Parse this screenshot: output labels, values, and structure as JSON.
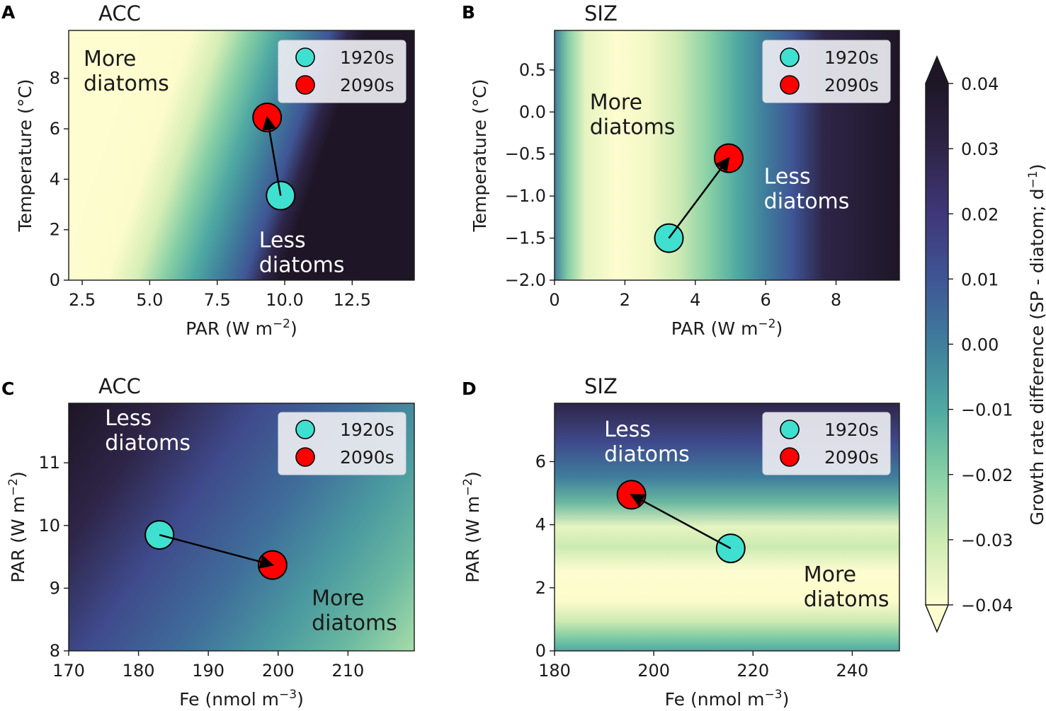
{
  "colorbar": {
    "label_main": "Growth rate difference (SP - diatom; d",
    "label_sup": "−1",
    "label_end": ")",
    "ticks": [
      "0.04",
      "0.03",
      "0.02",
      "0.01",
      "0.00",
      "−0.01",
      "−0.02",
      "−0.03",
      "−0.04"
    ],
    "ticks_values": [
      0.04,
      0.03,
      0.02,
      0.01,
      0.0,
      -0.01,
      -0.02,
      -0.03,
      -0.04
    ],
    "range": [
      -0.04,
      0.04
    ],
    "extend": "both",
    "colors": [
      "#fdfdd0",
      "#cdeab3",
      "#86cfa5",
      "#4fa9a2",
      "#3f7e9c",
      "#3f5595",
      "#3f3778",
      "#2e2548",
      "#1e1626"
    ]
  },
  "legend": {
    "entries": [
      "1920s",
      "2090s"
    ],
    "colors": [
      "#40e0d0",
      "#ff0000"
    ]
  },
  "chart_data": [
    {
      "panel": "A",
      "type": "heatmap",
      "title": "ACC",
      "xlabel_main": "PAR (W m",
      "xlabel_sup": "−2",
      "xlabel_end": ")",
      "ylabel": "Temperature (°C)",
      "xlim": [
        2.0,
        14.8
      ],
      "ylim": [
        0,
        9.9
      ],
      "xticks": [
        2.5,
        5.0,
        7.5,
        10.0,
        12.5
      ],
      "xtick_labels": [
        "2.5",
        "5.0",
        "7.5",
        "10.0",
        "12.5"
      ],
      "yticks": [
        0,
        2,
        4,
        6,
        8
      ],
      "ytick_labels": [
        "0",
        "2",
        "4",
        "6",
        "8"
      ],
      "points": {
        "x1920": 9.85,
        "y1920": 3.35,
        "x2090": 9.35,
        "y2090": 6.45
      },
      "annotations": [
        {
          "lines": [
            "More",
            "diatoms"
          ],
          "x": 2.55,
          "y": 8.5,
          "color": "#1a1a1a"
        },
        {
          "lines": [
            "Less",
            "diatoms"
          ],
          "x": 9.05,
          "y": 1.3,
          "color": "#ffffff"
        }
      ]
    },
    {
      "panel": "B",
      "type": "heatmap",
      "title": "SIZ",
      "xlabel_main": "PAR (W m",
      "xlabel_sup": "−2",
      "xlabel_end": ")",
      "ylabel": "Temperature (°C)",
      "xlim": [
        0,
        9.8
      ],
      "ylim": [
        -2.0,
        0.97
      ],
      "xticks": [
        0,
        2,
        4,
        6,
        8
      ],
      "xtick_labels": [
        "0",
        "2",
        "4",
        "6",
        "8"
      ],
      "yticks": [
        -2.0,
        -1.5,
        -1.0,
        -0.5,
        0.0,
        0.5
      ],
      "ytick_labels": [
        "−2.0",
        "−1.5",
        "−1.0",
        "−0.5",
        "0.0",
        "0.5"
      ],
      "points": {
        "x1920": 3.25,
        "y1920": -1.5,
        "x2090": 4.95,
        "y2090": -0.55
      },
      "annotations": [
        {
          "lines": [
            "More",
            "diatoms"
          ],
          "x": 1.0,
          "y": 0.03,
          "color": "#1a1a1a"
        },
        {
          "lines": [
            "Less",
            "diatoms"
          ],
          "x": 5.95,
          "y": -0.85,
          "color": "#ffffff"
        }
      ]
    },
    {
      "panel": "C",
      "type": "heatmap",
      "title": "ACC",
      "xlabel_main": "Fe (nmol m",
      "xlabel_sup": "−3",
      "xlabel_end": ")",
      "ylabel_main": "PAR (W m",
      "ylabel_sup": "−2",
      "ylabel_end": ")",
      "xlim": [
        170,
        219.5
      ],
      "ylim": [
        8.0,
        11.95
      ],
      "xticks": [
        170,
        180,
        190,
        200,
        210
      ],
      "xtick_labels": [
        "170",
        "180",
        "190",
        "200",
        "210"
      ],
      "yticks": [
        8,
        9,
        10,
        11
      ],
      "ytick_labels": [
        "8",
        "9",
        "10",
        "11"
      ],
      "points": {
        "x1920": 183.0,
        "y1920": 9.85,
        "x2090": 199.2,
        "y2090": 9.37
      },
      "annotations": [
        {
          "lines": [
            "Less",
            "diatoms"
          ],
          "x": 175.2,
          "y": 11.6,
          "color": "#ffffff"
        },
        {
          "lines": [
            "More",
            "diatoms"
          ],
          "x": 204.8,
          "y": 8.73,
          "color": "#1a1a1a"
        }
      ]
    },
    {
      "panel": "D",
      "type": "heatmap",
      "title": "SIZ",
      "xlabel_main": "Fe (nmol m",
      "xlabel_sup": "−3",
      "xlabel_end": ")",
      "ylabel_main": "PAR (W m",
      "ylabel_sup": "−2",
      "ylabel_end": ")",
      "xlim": [
        180,
        249.5
      ],
      "ylim": [
        0,
        7.85
      ],
      "xticks": [
        180,
        200,
        220,
        240
      ],
      "xtick_labels": [
        "180",
        "200",
        "220",
        "240"
      ],
      "yticks": [
        0,
        2,
        4,
        6
      ],
      "ytick_labels": [
        "0",
        "2",
        "4",
        "6"
      ],
      "points": {
        "x1920": 215.5,
        "y1920": 3.25,
        "x2090": 195.5,
        "y2090": 4.95
      },
      "annotations": [
        {
          "lines": [
            "Less",
            "diatoms"
          ],
          "x": 190.0,
          "y": 6.8,
          "color": "#ffffff"
        },
        {
          "lines": [
            "More",
            "diatoms"
          ],
          "x": 230.2,
          "y": 2.2,
          "color": "#1a1a1a"
        }
      ]
    }
  ]
}
